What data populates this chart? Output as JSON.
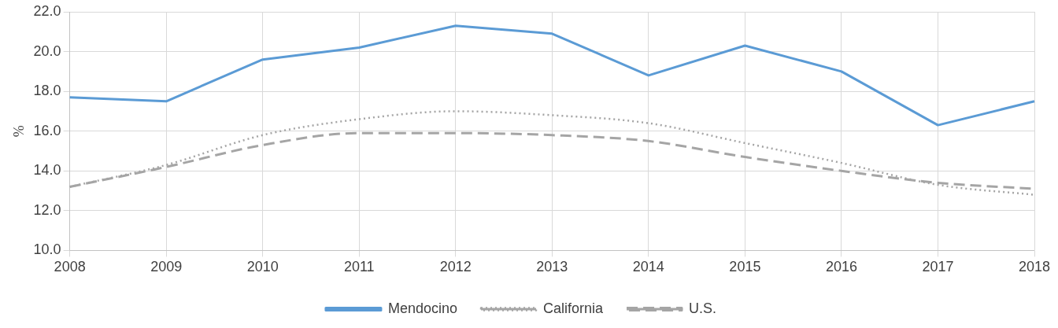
{
  "chart_data": {
    "type": "line",
    "ylabel": "%",
    "categories": [
      "2008",
      "2009",
      "2010",
      "2011",
      "2012",
      "2013",
      "2014",
      "2015",
      "2016",
      "2017",
      "2018"
    ],
    "series": [
      {
        "name": "Mendocino",
        "color": "#5b9bd5",
        "line_style": "solid",
        "values": [
          17.7,
          17.5,
          19.6,
          20.2,
          21.3,
          20.9,
          18.8,
          20.3,
          19.0,
          16.3,
          17.5
        ]
      },
      {
        "name": "California",
        "color": "#a5a5a5",
        "line_style": "dotted",
        "values": [
          13.2,
          14.3,
          15.8,
          16.6,
          17.0,
          16.8,
          16.4,
          15.4,
          14.4,
          13.3,
          12.8
        ]
      },
      {
        "name": "U.S.",
        "color": "#a5a5a5",
        "line_style": "dashed",
        "values": [
          13.2,
          14.2,
          15.3,
          15.9,
          15.9,
          15.8,
          15.5,
          14.7,
          14.0,
          13.4,
          13.1
        ]
      }
    ],
    "ylim": [
      10,
      22
    ],
    "yticks": [
      {
        "value": 10,
        "label": "10.0"
      },
      {
        "value": 12,
        "label": "12.0"
      },
      {
        "value": 14,
        "label": "14.0"
      },
      {
        "value": 16,
        "label": "16.0"
      },
      {
        "value": 18,
        "label": "18.0"
      },
      {
        "value": 20,
        "label": "20.0"
      },
      {
        "value": 22,
        "label": "22.0"
      }
    ],
    "grid": true,
    "legend": "bottom",
    "marker": "none"
  }
}
